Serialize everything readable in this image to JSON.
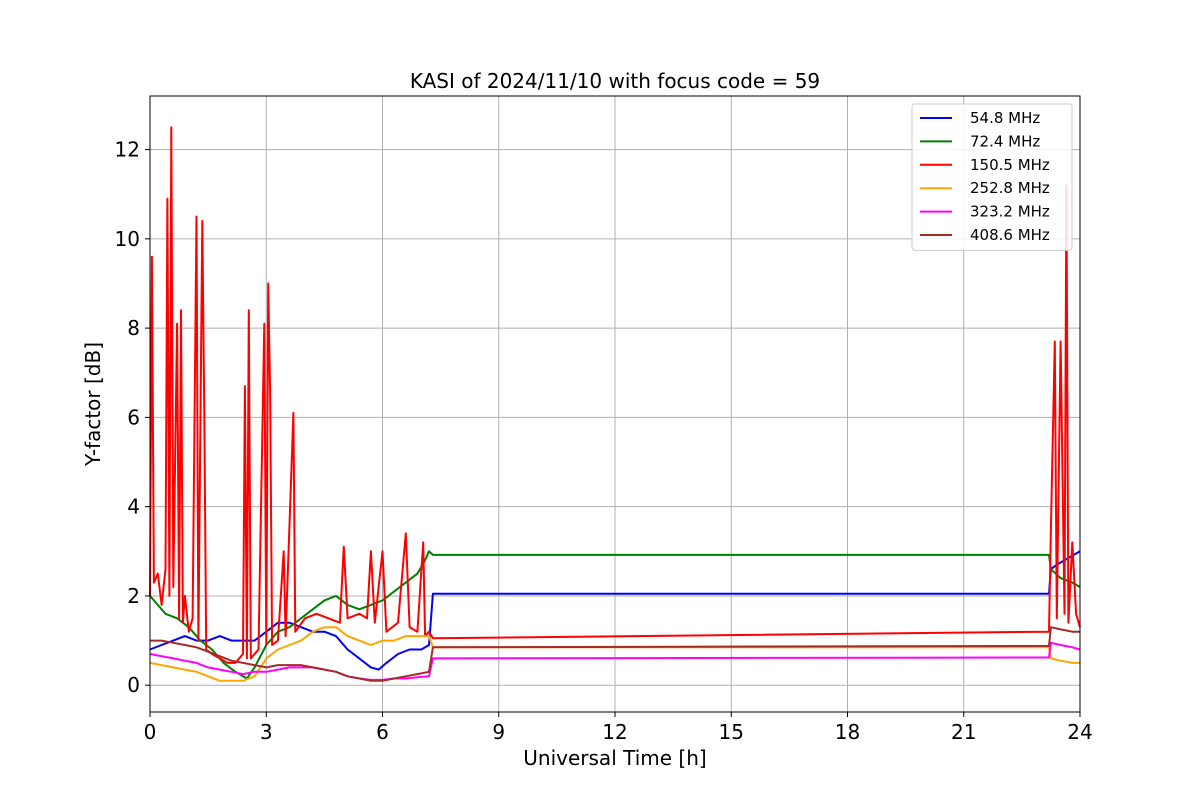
{
  "chart_data": {
    "type": "line",
    "title": "KASI of 2024/11/10 with focus code = 59",
    "xlabel": "Universal Time [h]",
    "ylabel": "Y-factor [dB]",
    "xlim": [
      0,
      24
    ],
    "ylim": [
      -0.6,
      13.2
    ],
    "xticks": [
      0,
      3,
      6,
      9,
      12,
      15,
      18,
      21,
      24
    ],
    "yticks": [
      0,
      2,
      4,
      6,
      8,
      10,
      12
    ],
    "grid": true,
    "legend_position": "top-right",
    "series": [
      {
        "name": " 54.8 MHz",
        "color": "#0000ff",
        "points": [
          [
            0,
            0.8
          ],
          [
            0.3,
            0.9
          ],
          [
            0.6,
            1.0
          ],
          [
            0.9,
            1.1
          ],
          [
            1.2,
            1.0
          ],
          [
            1.5,
            1.0
          ],
          [
            1.8,
            1.1
          ],
          [
            2.1,
            1.0
          ],
          [
            2.4,
            1.0
          ],
          [
            2.7,
            1.0
          ],
          [
            3.0,
            1.2
          ],
          [
            3.3,
            1.4
          ],
          [
            3.6,
            1.4
          ],
          [
            3.9,
            1.3
          ],
          [
            4.2,
            1.2
          ],
          [
            4.5,
            1.2
          ],
          [
            4.8,
            1.1
          ],
          [
            5.1,
            0.8
          ],
          [
            5.4,
            0.6
          ],
          [
            5.7,
            0.4
          ],
          [
            5.9,
            0.35
          ],
          [
            6.1,
            0.5
          ],
          [
            6.4,
            0.7
          ],
          [
            6.7,
            0.8
          ],
          [
            7.0,
            0.8
          ],
          [
            7.2,
            0.9
          ],
          [
            7.3,
            2.05
          ],
          [
            23.2,
            2.05
          ],
          [
            23.25,
            2.6
          ],
          [
            23.4,
            2.7
          ],
          [
            23.6,
            2.8
          ],
          [
            23.8,
            2.9
          ],
          [
            24.0,
            3.0
          ]
        ]
      },
      {
        "name": " 72.4 MHz",
        "color": "#008000",
        "points": [
          [
            0,
            2.0
          ],
          [
            0.2,
            1.8
          ],
          [
            0.4,
            1.6
          ],
          [
            0.7,
            1.5
          ],
          [
            1.0,
            1.3
          ],
          [
            1.3,
            1.0
          ],
          [
            1.6,
            0.8
          ],
          [
            1.9,
            0.5
          ],
          [
            2.2,
            0.3
          ],
          [
            2.5,
            0.15
          ],
          [
            2.7,
            0.4
          ],
          [
            3.0,
            0.9
          ],
          [
            3.3,
            1.2
          ],
          [
            3.6,
            1.3
          ],
          [
            3.9,
            1.5
          ],
          [
            4.2,
            1.7
          ],
          [
            4.5,
            1.9
          ],
          [
            4.8,
            2.0
          ],
          [
            5.1,
            1.8
          ],
          [
            5.4,
            1.7
          ],
          [
            5.7,
            1.8
          ],
          [
            6.0,
            1.9
          ],
          [
            6.3,
            2.1
          ],
          [
            6.6,
            2.3
          ],
          [
            6.9,
            2.5
          ],
          [
            7.1,
            2.8
          ],
          [
            7.2,
            3.0
          ],
          [
            7.3,
            2.92
          ],
          [
            23.2,
            2.92
          ],
          [
            23.25,
            2.6
          ],
          [
            23.5,
            2.4
          ],
          [
            23.8,
            2.3
          ],
          [
            24.0,
            2.2
          ]
        ]
      },
      {
        "name": "150.5 MHz",
        "color": "#ff0000",
        "points": [
          [
            0,
            2.0
          ],
          [
            0.05,
            9.6
          ],
          [
            0.1,
            2.3
          ],
          [
            0.2,
            2.5
          ],
          [
            0.3,
            1.8
          ],
          [
            0.4,
            2.6
          ],
          [
            0.45,
            10.9
          ],
          [
            0.5,
            2.0
          ],
          [
            0.55,
            12.5
          ],
          [
            0.6,
            2.2
          ],
          [
            0.7,
            8.1
          ],
          [
            0.75,
            1.5
          ],
          [
            0.8,
            8.4
          ],
          [
            0.85,
            1.4
          ],
          [
            0.9,
            2.0
          ],
          [
            1.0,
            1.2
          ],
          [
            1.1,
            1.5
          ],
          [
            1.2,
            10.5
          ],
          [
            1.25,
            1.0
          ],
          [
            1.35,
            10.4
          ],
          [
            1.4,
            6.1
          ],
          [
            1.45,
            0.8
          ],
          [
            1.6,
            0.7
          ],
          [
            1.8,
            0.6
          ],
          [
            2.0,
            0.5
          ],
          [
            2.2,
            0.5
          ],
          [
            2.4,
            0.7
          ],
          [
            2.45,
            6.7
          ],
          [
            2.5,
            0.6
          ],
          [
            2.55,
            8.4
          ],
          [
            2.6,
            0.6
          ],
          [
            2.8,
            0.8
          ],
          [
            2.95,
            8.1
          ],
          [
            3.0,
            0.9
          ],
          [
            3.05,
            9.0
          ],
          [
            3.1,
            6.6
          ],
          [
            3.15,
            0.9
          ],
          [
            3.3,
            1.0
          ],
          [
            3.45,
            3.0
          ],
          [
            3.5,
            1.1
          ],
          [
            3.7,
            6.1
          ],
          [
            3.75,
            1.2
          ],
          [
            4.0,
            1.5
          ],
          [
            4.3,
            1.6
          ],
          [
            4.6,
            1.5
          ],
          [
            4.9,
            1.4
          ],
          [
            5.0,
            3.1
          ],
          [
            5.1,
            1.5
          ],
          [
            5.4,
            1.6
          ],
          [
            5.6,
            1.5
          ],
          [
            5.7,
            3.0
          ],
          [
            5.8,
            1.4
          ],
          [
            6.0,
            3.0
          ],
          [
            6.1,
            1.2
          ],
          [
            6.4,
            1.4
          ],
          [
            6.6,
            3.4
          ],
          [
            6.7,
            1.3
          ],
          [
            6.9,
            1.2
          ],
          [
            7.05,
            3.2
          ],
          [
            7.1,
            1.1
          ],
          [
            7.2,
            1.2
          ],
          [
            7.3,
            1.05
          ],
          [
            23.2,
            1.2
          ],
          [
            23.25,
            3.5
          ],
          [
            23.35,
            7.7
          ],
          [
            23.4,
            1.5
          ],
          [
            23.5,
            7.7
          ],
          [
            23.6,
            1.6
          ],
          [
            23.65,
            11.2
          ],
          [
            23.7,
            1.4
          ],
          [
            23.8,
            3.2
          ],
          [
            23.9,
            1.6
          ],
          [
            24.0,
            1.3
          ]
        ]
      },
      {
        "name": "252.8 MHz",
        "color": "#ffa500",
        "points": [
          [
            0,
            0.5
          ],
          [
            0.3,
            0.45
          ],
          [
            0.6,
            0.4
          ],
          [
            0.9,
            0.35
          ],
          [
            1.2,
            0.3
          ],
          [
            1.5,
            0.2
          ],
          [
            1.8,
            0.1
          ],
          [
            2.1,
            0.1
          ],
          [
            2.4,
            0.1
          ],
          [
            2.7,
            0.2
          ],
          [
            3.0,
            0.6
          ],
          [
            3.3,
            0.8
          ],
          [
            3.6,
            0.9
          ],
          [
            3.9,
            1.0
          ],
          [
            4.2,
            1.2
          ],
          [
            4.5,
            1.3
          ],
          [
            4.8,
            1.3
          ],
          [
            5.1,
            1.1
          ],
          [
            5.4,
            1.0
          ],
          [
            5.7,
            0.9
          ],
          [
            6.0,
            1.0
          ],
          [
            6.3,
            1.0
          ],
          [
            6.6,
            1.1
          ],
          [
            6.9,
            1.1
          ],
          [
            7.2,
            1.1
          ],
          [
            7.3,
            0.85
          ],
          [
            23.2,
            0.85
          ],
          [
            23.25,
            0.6
          ],
          [
            23.5,
            0.55
          ],
          [
            23.8,
            0.5
          ],
          [
            24.0,
            0.5
          ]
        ]
      },
      {
        "name": "323.2 MHz",
        "color": "#ff00ff",
        "points": [
          [
            0,
            0.7
          ],
          [
            0.3,
            0.65
          ],
          [
            0.6,
            0.6
          ],
          [
            0.9,
            0.55
          ],
          [
            1.2,
            0.5
          ],
          [
            1.5,
            0.4
          ],
          [
            1.8,
            0.35
          ],
          [
            2.1,
            0.3
          ],
          [
            2.4,
            0.25
          ],
          [
            2.7,
            0.3
          ],
          [
            3.0,
            0.3
          ],
          [
            3.3,
            0.35
          ],
          [
            3.6,
            0.4
          ],
          [
            3.9,
            0.4
          ],
          [
            4.2,
            0.4
          ],
          [
            4.5,
            0.35
          ],
          [
            4.8,
            0.3
          ],
          [
            5.1,
            0.2
          ],
          [
            5.4,
            0.15
          ],
          [
            5.7,
            0.12
          ],
          [
            6.0,
            0.12
          ],
          [
            6.3,
            0.15
          ],
          [
            6.6,
            0.15
          ],
          [
            6.9,
            0.18
          ],
          [
            7.2,
            0.2
          ],
          [
            7.3,
            0.6
          ],
          [
            23.2,
            0.62
          ],
          [
            23.25,
            0.95
          ],
          [
            23.5,
            0.9
          ],
          [
            23.8,
            0.85
          ],
          [
            24.0,
            0.8
          ]
        ]
      },
      {
        "name": "408.6 MHz",
        "color": "#a52a2a",
        "points": [
          [
            0,
            1.0
          ],
          [
            0.3,
            1.0
          ],
          [
            0.6,
            0.95
          ],
          [
            0.9,
            0.9
          ],
          [
            1.2,
            0.85
          ],
          [
            1.5,
            0.75
          ],
          [
            1.8,
            0.65
          ],
          [
            2.1,
            0.55
          ],
          [
            2.4,
            0.5
          ],
          [
            2.7,
            0.45
          ],
          [
            3.0,
            0.4
          ],
          [
            3.3,
            0.45
          ],
          [
            3.6,
            0.45
          ],
          [
            3.9,
            0.45
          ],
          [
            4.2,
            0.4
          ],
          [
            4.5,
            0.35
          ],
          [
            4.8,
            0.3
          ],
          [
            5.1,
            0.2
          ],
          [
            5.4,
            0.15
          ],
          [
            5.7,
            0.1
          ],
          [
            6.0,
            0.1
          ],
          [
            6.3,
            0.15
          ],
          [
            6.6,
            0.2
          ],
          [
            6.9,
            0.25
          ],
          [
            7.2,
            0.3
          ],
          [
            7.3,
            0.85
          ],
          [
            23.2,
            0.88
          ],
          [
            23.25,
            1.3
          ],
          [
            23.5,
            1.25
          ],
          [
            23.8,
            1.2
          ],
          [
            24.0,
            1.2
          ]
        ]
      }
    ]
  }
}
